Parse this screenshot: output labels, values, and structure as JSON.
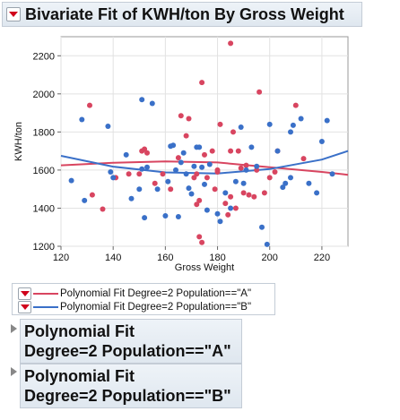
{
  "report": {
    "title": "Bivariate Fit of KWH/ton By Gross Weight"
  },
  "chart_data": {
    "type": "scatter",
    "xlabel": "Gross Weight",
    "ylabel": "KWH/ton",
    "xlim": [
      120,
      230
    ],
    "ylim": [
      1200,
      2300
    ],
    "xticks": [
      120,
      140,
      160,
      180,
      200,
      220
    ],
    "yticks": [
      1200,
      1400,
      1600,
      1800,
      2000,
      2200
    ],
    "grid": true,
    "series": [
      {
        "name": "A",
        "color": "#d84560",
        "points": [
          [
            131,
            1940
          ],
          [
            132,
            1470
          ],
          [
            136,
            1395
          ],
          [
            141,
            1560
          ],
          [
            146,
            1580
          ],
          [
            150,
            1580
          ],
          [
            151,
            1700
          ],
          [
            152,
            1710
          ],
          [
            153,
            1690
          ],
          [
            156,
            1530
          ],
          [
            159,
            1580
          ],
          [
            162,
            1500
          ],
          [
            165,
            1665
          ],
          [
            166,
            1885
          ],
          [
            168,
            1780
          ],
          [
            169,
            1870
          ],
          [
            171,
            1560
          ],
          [
            172,
            1580
          ],
          [
            172,
            1420
          ],
          [
            173,
            1440
          ],
          [
            173,
            1250
          ],
          [
            174,
            1220
          ],
          [
            174,
            2060
          ],
          [
            175,
            1680
          ],
          [
            176,
            1560
          ],
          [
            178,
            1700
          ],
          [
            179,
            1500
          ],
          [
            180,
            1600
          ],
          [
            180,
            1590
          ],
          [
            181,
            1840
          ],
          [
            183,
            1425
          ],
          [
            184,
            1365
          ],
          [
            185,
            2265
          ],
          [
            185,
            1700
          ],
          [
            185,
            1460
          ],
          [
            186,
            1800
          ],
          [
            187,
            1400
          ],
          [
            188,
            1700
          ],
          [
            189,
            1610
          ],
          [
            190,
            1480
          ],
          [
            191,
            1625
          ],
          [
            192,
            1470
          ],
          [
            194,
            1460
          ],
          [
            195,
            1600
          ],
          [
            196,
            2010
          ],
          [
            198,
            1480
          ],
          [
            200,
            1560
          ],
          [
            202,
            1590
          ],
          [
            203,
            1700
          ],
          [
            210,
            1940
          ],
          [
            213,
            1660
          ]
        ]
      },
      {
        "name": "B",
        "color": "#3a70c8",
        "points": [
          [
            124,
            1545
          ],
          [
            128,
            1865
          ],
          [
            129,
            1440
          ],
          [
            138,
            1830
          ],
          [
            139,
            1590
          ],
          [
            140,
            1560
          ],
          [
            145,
            1680
          ],
          [
            147,
            1450
          ],
          [
            150,
            1500
          ],
          [
            151,
            1970
          ],
          [
            151,
            1605
          ],
          [
            152,
            1350
          ],
          [
            153,
            1615
          ],
          [
            155,
            1950
          ],
          [
            157,
            1500
          ],
          [
            160,
            1360
          ],
          [
            161,
            1540
          ],
          [
            162,
            1725
          ],
          [
            163,
            1730
          ],
          [
            164,
            1600
          ],
          [
            165,
            1355
          ],
          [
            166,
            1640
          ],
          [
            167,
            1690
          ],
          [
            168,
            1580
          ],
          [
            169,
            1505
          ],
          [
            170,
            1475
          ],
          [
            171,
            1620
          ],
          [
            172,
            1720
          ],
          [
            173,
            1720
          ],
          [
            174,
            1615
          ],
          [
            175,
            1525
          ],
          [
            176,
            1390
          ],
          [
            177,
            1630
          ],
          [
            180,
            1370
          ],
          [
            181,
            1330
          ],
          [
            183,
            1480
          ],
          [
            185,
            1400
          ],
          [
            187,
            1540
          ],
          [
            189,
            1825
          ],
          [
            190,
            1530
          ],
          [
            191,
            1600
          ],
          [
            193,
            1720
          ],
          [
            195,
            1620
          ],
          [
            197,
            1300
          ],
          [
            199,
            1210
          ],
          [
            200,
            1840
          ],
          [
            203,
            1700
          ],
          [
            205,
            1510
          ],
          [
            206,
            1530
          ],
          [
            208,
            1560
          ],
          [
            208,
            1800
          ],
          [
            209,
            1835
          ],
          [
            212,
            1870
          ],
          [
            215,
            1530
          ],
          [
            218,
            1480
          ],
          [
            220,
            1750
          ],
          [
            222,
            1860
          ],
          [
            224,
            1580
          ]
        ]
      }
    ],
    "fits": [
      {
        "name": "Polynomial Fit Degree=2 Population==\"A\"",
        "color": "#d84560",
        "x": [
          120,
          140,
          160,
          180,
          200,
          220,
          230
        ],
        "y": [
          1625,
          1638,
          1645,
          1640,
          1615,
          1590,
          1575
        ]
      },
      {
        "name": "Polynomial Fit Degree=2 Population==\"B\"",
        "color": "#3a70c8",
        "x": [
          120,
          140,
          160,
          180,
          200,
          220,
          230
        ],
        "y": [
          1675,
          1618,
          1588,
          1582,
          1605,
          1655,
          1700
        ]
      }
    ]
  },
  "legend": {
    "items": [
      {
        "label": "Polynomial Fit Degree=2 Population==\"A\"",
        "color": "#d84560"
      },
      {
        "label": "Polynomial Fit Degree=2 Population==\"B\"",
        "color": "#3a70c8"
      }
    ]
  },
  "sections": [
    {
      "line1": "Polynomial Fit",
      "line2": "Degree=2 Population==\"A\""
    },
    {
      "line1": "Polynomial Fit",
      "line2": "Degree=2 Population==\"B\""
    }
  ]
}
